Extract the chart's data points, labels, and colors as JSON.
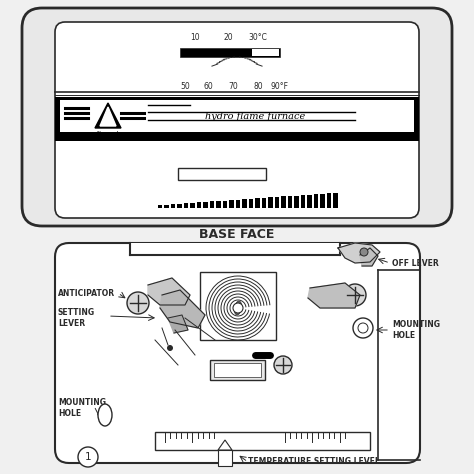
{
  "bg_color": "#f0f0f0",
  "face_bg": "#ffffff",
  "line_color": "#2a2a2a",
  "title": "BASE FACE",
  "labels": {
    "anticipator": "ANTICIPATOR",
    "setting_lever": "SETTING\nLEVER",
    "off_lever": "OFF LEVER",
    "mounting_hole_right": "MOUNTING\nHOLE",
    "mounting_hole_left": "MOUNTING\nHOLE",
    "temp_setting": "TEMPERATURE SETTING LEVEL"
  },
  "figure_size": [
    4.74,
    4.74
  ],
  "dpi": 100
}
